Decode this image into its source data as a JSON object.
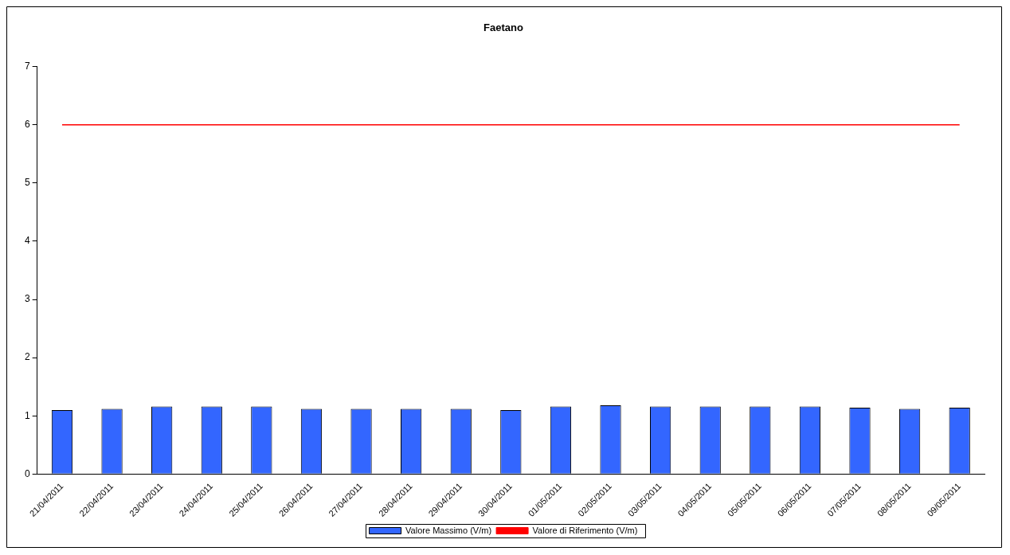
{
  "chart_data": {
    "type": "bar",
    "title": "Faetano",
    "categories": [
      "21/04/2011",
      "22/04/2011",
      "23/04/2011",
      "24/04/2011",
      "25/04/2011",
      "26/04/2011",
      "27/04/2011",
      "28/04/2011",
      "29/04/2011",
      "30/04/2011",
      "01/05/2011",
      "02/05/2011",
      "03/05/2011",
      "04/05/2011",
      "05/05/2011",
      "06/05/2011",
      "07/05/2011",
      "08/05/2011",
      "09/05/2011"
    ],
    "series": [
      {
        "name": "Valore Massimo (V/m)",
        "color": "#3366ff",
        "values": [
          1.1,
          1.12,
          1.16,
          1.16,
          1.16,
          1.12,
          1.12,
          1.12,
          1.12,
          1.1,
          1.16,
          1.18,
          1.16,
          1.16,
          1.16,
          1.16,
          1.14,
          1.12,
          1.14
        ]
      },
      {
        "name": "Valore di Riferimento (V/m)",
        "type": "line",
        "color": "#ff0000",
        "values": [
          6,
          6,
          6,
          6,
          6,
          6,
          6,
          6,
          6,
          6,
          6,
          6,
          6,
          6,
          6,
          6,
          6,
          6,
          6
        ]
      }
    ],
    "ylim": [
      0,
      7
    ],
    "yticks": [
      0,
      1,
      2,
      3,
      4,
      5,
      6,
      7
    ],
    "grid": false,
    "legend": "bottom",
    "marker": "none"
  }
}
